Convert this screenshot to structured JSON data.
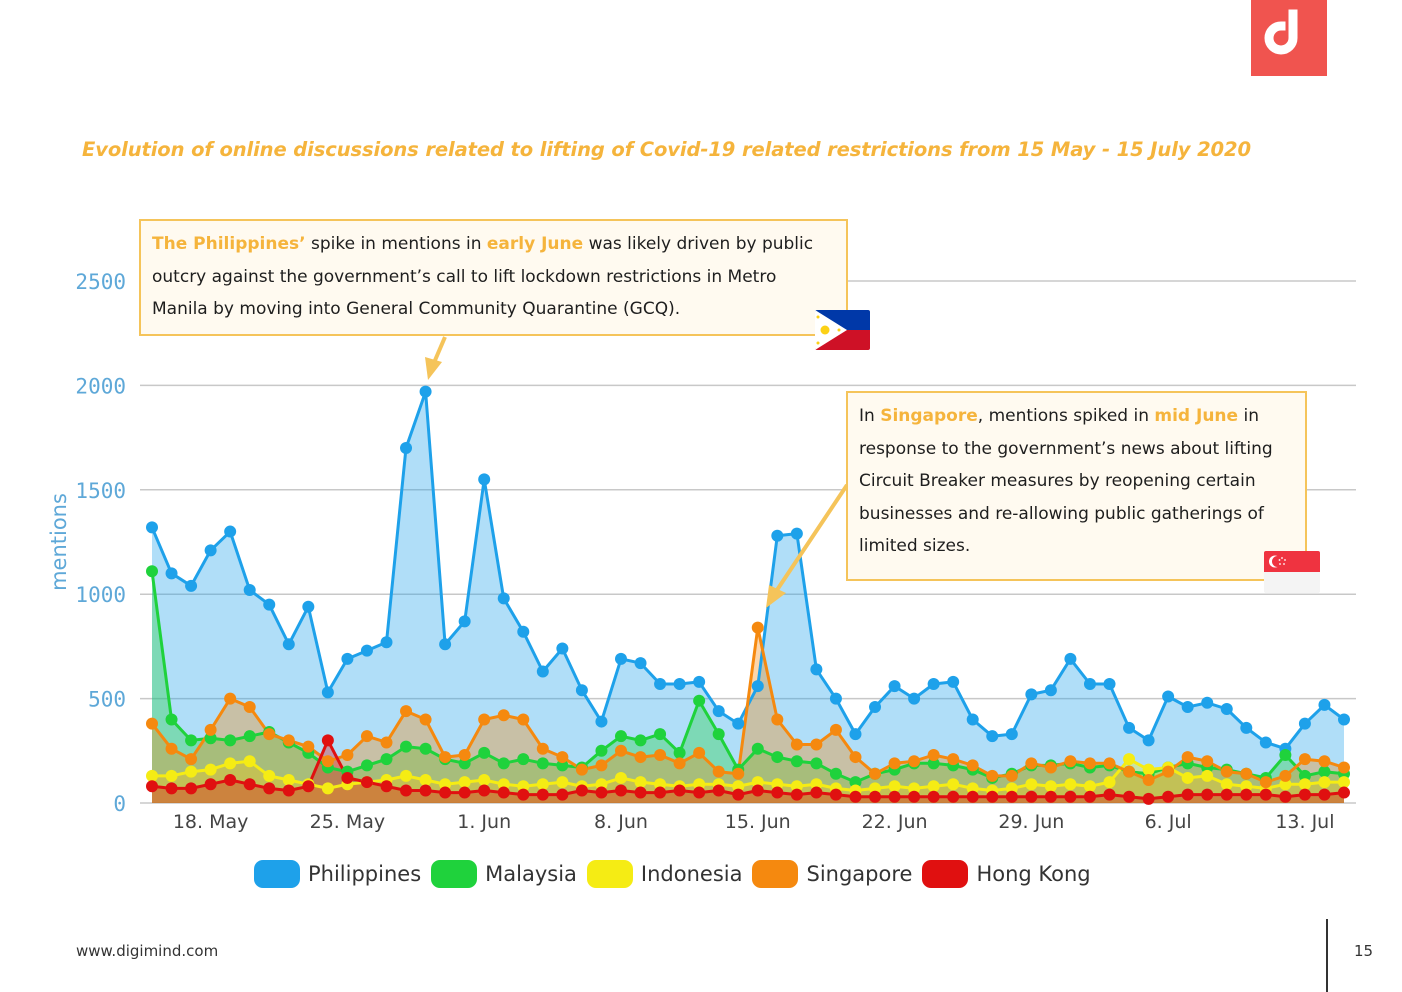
{
  "brand": {
    "logo": "digimind-logo",
    "color": "#f0544f"
  },
  "title": "Evolution of online discussions related to lifting of Covid-19 related restrictions from 15 May - 15 July 2020",
  "callouts": {
    "philippines": {
      "hl1": "The Philippines’",
      "t1": " spike in mentions in ",
      "hl2": "early June",
      "t2": " was likely driven by public outcry against  the government’s call to lift lockdown restrictions in Metro Manila by moving into General Community Quarantine (GCQ)."
    },
    "singapore": {
      "t0": "In ",
      "hl1": "Singapore",
      "t1": ", mentions spiked in ",
      "hl2": "mid June",
      "t2": " in response to the government’s news about lifting Circuit Breaker measures by reopening certain businesses and re-allowing public gatherings of limited sizes."
    }
  },
  "footer": {
    "url": "www.digimind.com",
    "page": "15"
  },
  "colors": {
    "Philippines": "#1ea1ea",
    "Malaysia": "#1fd23c",
    "Indonesia": "#f5ec14",
    "Singapore": "#f5890f",
    "Hong Kong": "#e01010",
    "axis_text": "#5ea8d8",
    "grid": "#c8c8c8"
  },
  "chart_data": {
    "type": "area",
    "ylabel": "mentions",
    "xlabel": "",
    "ylim": [
      0,
      2500
    ],
    "yticks": [
      0,
      500,
      1000,
      1500,
      2000,
      2500
    ],
    "x_start": "2020-05-15",
    "x_end": "2020-07-15",
    "xticks": [
      {
        "date": "2020-05-18",
        "label": "18. May"
      },
      {
        "date": "2020-05-25",
        "label": "25. May"
      },
      {
        "date": "2020-06-01",
        "label": "1. Jun"
      },
      {
        "date": "2020-06-08",
        "label": "8. Jun"
      },
      {
        "date": "2020-06-15",
        "label": "15. Jun"
      },
      {
        "date": "2020-06-22",
        "label": "22. Jun"
      },
      {
        "date": "2020-06-29",
        "label": "29. Jun"
      },
      {
        "date": "2020-07-06",
        "label": "6. Jul"
      },
      {
        "date": "2020-07-13",
        "label": "13. Jul"
      }
    ],
    "legend_position": "bottom",
    "grid": true,
    "series": [
      {
        "name": "Philippines",
        "values": [
          1320,
          1100,
          1040,
          1210,
          1300,
          1020,
          950,
          760,
          940,
          530,
          690,
          730,
          770,
          1700,
          1970,
          760,
          870,
          1550,
          980,
          820,
          630,
          740,
          540,
          390,
          690,
          670,
          570,
          570,
          580,
          440,
          380,
          560,
          1280,
          1290,
          640,
          500,
          330,
          460,
          560,
          500,
          570,
          580,
          400,
          320,
          330,
          520,
          540,
          690,
          570,
          570,
          360,
          300,
          510,
          460,
          480,
          450,
          360,
          290,
          260,
          380,
          470,
          400
        ]
      },
      {
        "name": "Malaysia",
        "values": [
          1110,
          400,
          300,
          310,
          300,
          320,
          340,
          290,
          240,
          170,
          150,
          180,
          210,
          270,
          260,
          210,
          190,
          240,
          190,
          210,
          190,
          180,
          170,
          250,
          320,
          300,
          330,
          240,
          490,
          330,
          160,
          260,
          220,
          200,
          190,
          140,
          100,
          140,
          160,
          190,
          190,
          180,
          160,
          120,
          140,
          180,
          180,
          190,
          170,
          180,
          150,
          140,
          170,
          190,
          170,
          160,
          140,
          120,
          230,
          130,
          150,
          140
        ]
      },
      {
        "name": "Indonesia",
        "values": [
          130,
          130,
          150,
          160,
          190,
          200,
          130,
          110,
          90,
          70,
          90,
          100,
          110,
          130,
          110,
          90,
          100,
          110,
          90,
          80,
          90,
          100,
          80,
          90,
          120,
          100,
          90,
          80,
          90,
          90,
          80,
          100,
          90,
          80,
          90,
          70,
          60,
          70,
          80,
          70,
          80,
          90,
          70,
          60,
          70,
          90,
          80,
          90,
          80,
          100,
          210,
          160,
          170,
          120,
          130,
          90,
          80,
          70,
          90,
          90,
          100,
          100
        ]
      },
      {
        "name": "Singapore",
        "values": [
          380,
          260,
          210,
          350,
          500,
          460,
          330,
          300,
          270,
          200,
          230,
          320,
          290,
          440,
          400,
          220,
          230,
          400,
          420,
          400,
          260,
          220,
          160,
          180,
          250,
          220,
          230,
          190,
          240,
          150,
          140,
          840,
          400,
          280,
          280,
          350,
          220,
          140,
          190,
          200,
          230,
          210,
          180,
          130,
          130,
          190,
          170,
          200,
          190,
          190,
          150,
          110,
          150,
          220,
          200,
          150,
          140,
          100,
          130,
          210,
          200,
          170
        ]
      },
      {
        "name": "Hong Kong",
        "values": [
          80,
          70,
          70,
          90,
          110,
          90,
          70,
          60,
          80,
          300,
          120,
          100,
          80,
          60,
          60,
          50,
          50,
          60,
          50,
          40,
          40,
          40,
          60,
          50,
          60,
          50,
          50,
          60,
          50,
          60,
          40,
          60,
          50,
          40,
          50,
          40,
          30,
          30,
          30,
          30,
          30,
          30,
          30,
          30,
          30,
          30,
          30,
          30,
          30,
          40,
          30,
          20,
          30,
          40,
          40,
          40,
          40,
          40,
          30,
          40,
          40,
          50
        ]
      }
    ]
  }
}
